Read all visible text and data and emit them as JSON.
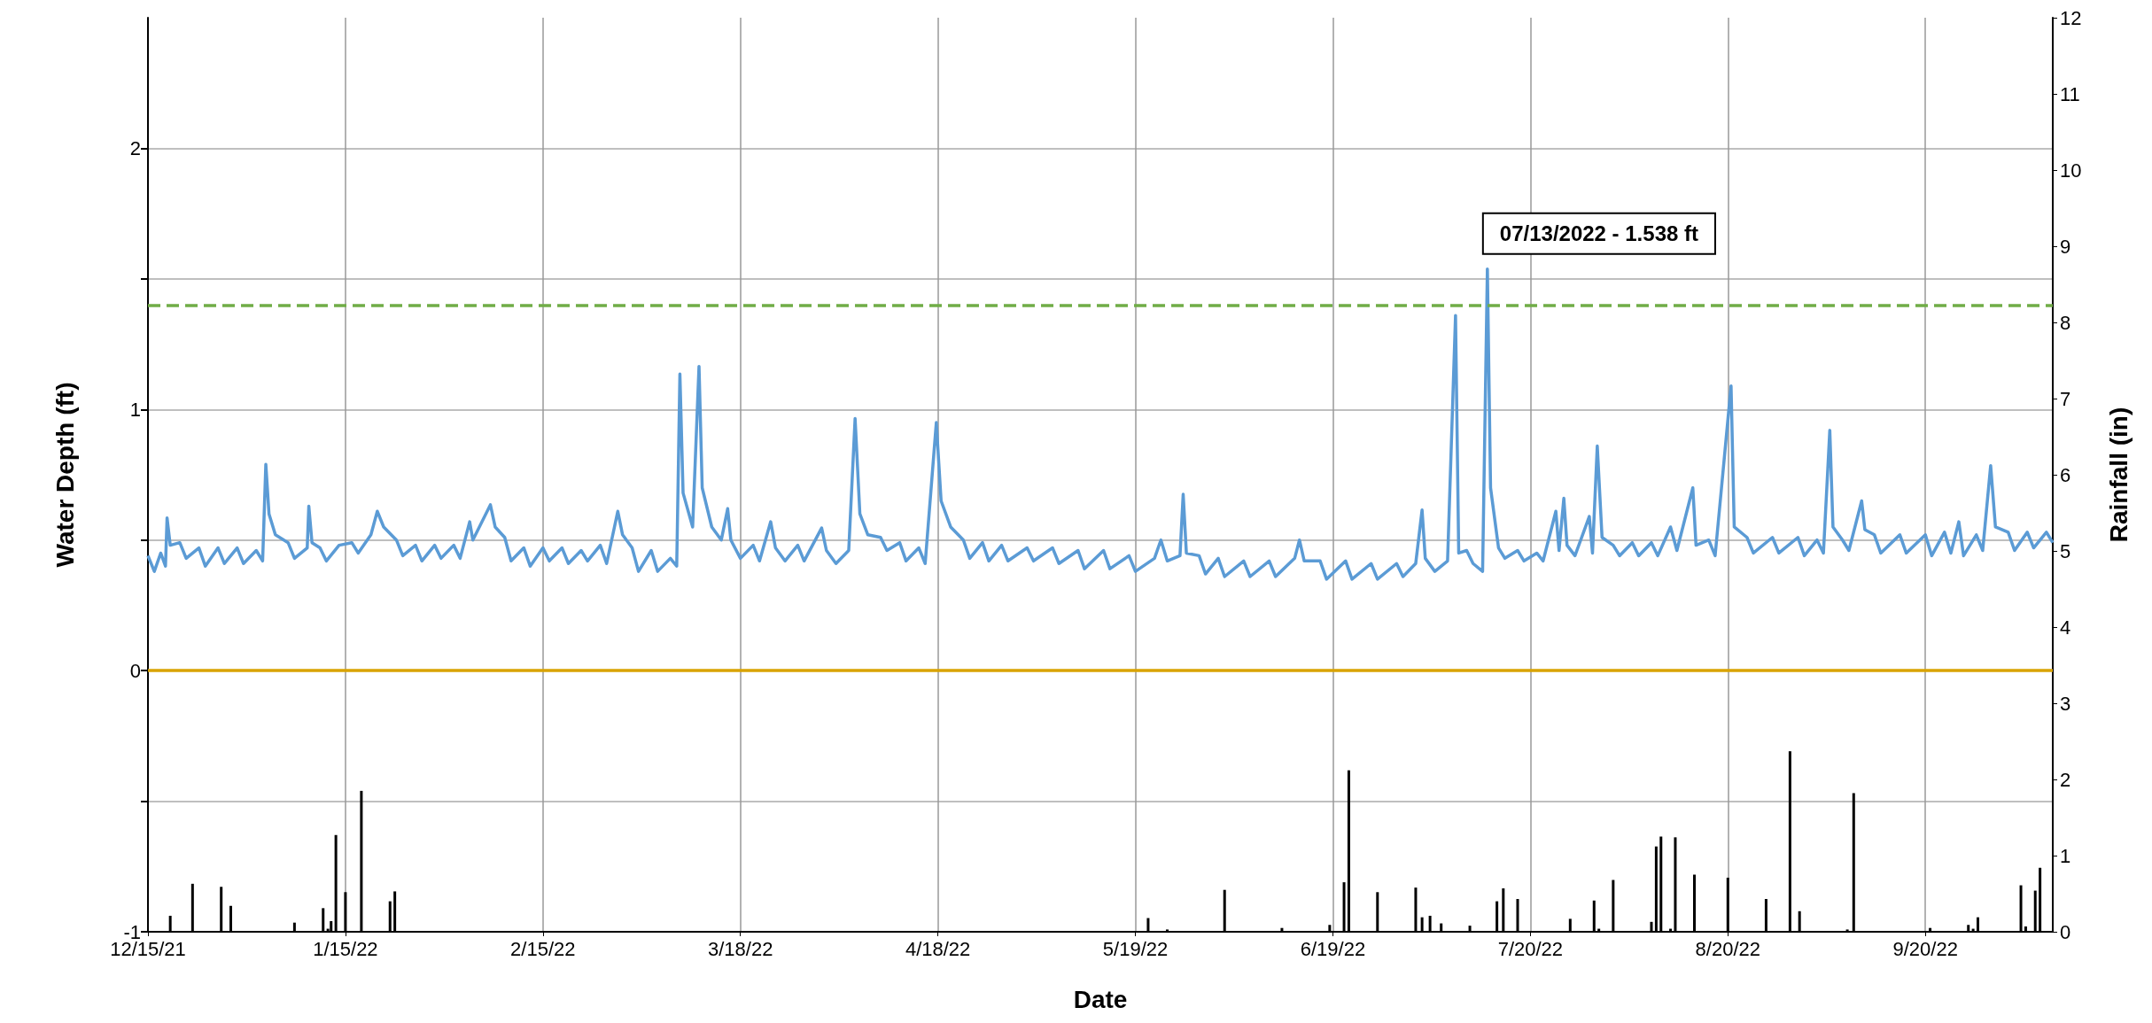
{
  "chart_data": {
    "type": "line",
    "xlabel": "Date",
    "ylabel": "Water Depth (ft)",
    "y2label": "Rainfall (in)",
    "xlim": [
      "2021-12-15",
      "2022-10-10"
    ],
    "xticks": [
      {
        "value": "2021-12-15",
        "label": "12/15/21"
      },
      {
        "value": "2022-01-15",
        "label": "1/15/22"
      },
      {
        "value": "2022-02-15",
        "label": "2/15/22"
      },
      {
        "value": "2022-03-18",
        "label": "3/18/22"
      },
      {
        "value": "2022-04-18",
        "label": "4/18/22"
      },
      {
        "value": "2022-05-19",
        "label": "5/19/22"
      },
      {
        "value": "2022-06-19",
        "label": "6/19/22"
      },
      {
        "value": "2022-07-20",
        "label": "7/20/22"
      },
      {
        "value": "2022-08-20",
        "label": "8/20/22"
      },
      {
        "value": "2022-09-20",
        "label": "9/20/22"
      }
    ],
    "ylim": [
      -1,
      2.5
    ],
    "yticks": [
      -1,
      {
        "value": -0.5,
        "label": null
      },
      0,
      {
        "value": 0.5,
        "label": null
      },
      1,
      {
        "value": 1.5,
        "label": null
      },
      2
    ],
    "y2lim": [
      0,
      12
    ],
    "y2ticks": [
      0,
      1,
      2,
      3,
      4,
      5,
      6,
      7,
      8,
      9,
      10,
      11,
      12
    ],
    "grid": true,
    "marker": "none",
    "ref_lines": [
      {
        "axis": "y",
        "value": 1.4,
        "color": "#70ad47",
        "line_style": "dashed"
      },
      {
        "axis": "y",
        "value": 0,
        "color": "#d9a300",
        "line_style": "solid"
      }
    ],
    "annotations": [
      {
        "text": "07/13/2022 - 1.538 ft",
        "x": "2022-07-13T06:00",
        "y": 1.538
      }
    ],
    "series": [
      {
        "color": "#5b9bd5",
        "line_style": "solid",
        "x": [
          "2021-12-15",
          "2021-12-16",
          "2021-12-17",
          "2021-12-17T18:00",
          "2021-12-18",
          "2021-12-18T12:00",
          "2021-12-20",
          "2021-12-21",
          "2021-12-23",
          "2021-12-24",
          "2021-12-26",
          "2021-12-27",
          "2021-12-29",
          "2021-12-30",
          "2022-01-01",
          "2022-01-02",
          "2022-01-02T12:00",
          "2022-01-03",
          "2022-01-04",
          "2022-01-06",
          "2022-01-07",
          "2022-01-09",
          "2022-01-09T06:00",
          "2022-01-09T18:00",
          "2022-01-11",
          "2022-01-12",
          "2022-01-14",
          "2022-01-16",
          "2022-01-17",
          "2022-01-19",
          "2022-01-20",
          "2022-01-21",
          "2022-01-23",
          "2022-01-24",
          "2022-01-26",
          "2022-01-27",
          "2022-01-29",
          "2022-01-30",
          "2022-02-01",
          "2022-02-02",
          "2022-02-03T12:00",
          "2022-02-04",
          "2022-02-06T18:00",
          "2022-02-07T12:00",
          "2022-02-09",
          "2022-02-10",
          "2022-02-12",
          "2022-02-13",
          "2022-02-15",
          "2022-02-16",
          "2022-02-18",
          "2022-02-19",
          "2022-02-21",
          "2022-02-22",
          "2022-02-24",
          "2022-02-25",
          "2022-02-26T18:00",
          "2022-02-27T12:00",
          "2022-03-01",
          "2022-03-02",
          "2022-03-04",
          "2022-03-05",
          "2022-03-07",
          "2022-03-08",
          "2022-03-08T12:00",
          "2022-03-09",
          "2022-03-10T12:00",
          "2022-03-11T12:00",
          "2022-03-12",
          "2022-03-13T12:00",
          "2022-03-15",
          "2022-03-16",
          "2022-03-16T12:00",
          "2022-03-18",
          "2022-03-20",
          "2022-03-21",
          "2022-03-22T18:00",
          "2022-03-23T12:00",
          "2022-03-25",
          "2022-03-27",
          "2022-03-28",
          "2022-03-30T18:00",
          "2022-03-31T12:00",
          "2022-04-02",
          "2022-04-04",
          "2022-04-05",
          "2022-04-05T18:00",
          "2022-04-07",
          "2022-04-09",
          "2022-04-10",
          "2022-04-12",
          "2022-04-13",
          "2022-04-15",
          "2022-04-16",
          "2022-04-17T18:00",
          "2022-04-18T12:00",
          "2022-04-20",
          "2022-04-22",
          "2022-04-23",
          "2022-04-25",
          "2022-04-26",
          "2022-04-28",
          "2022-04-29",
          "2022-05-02",
          "2022-05-03",
          "2022-05-06",
          "2022-05-07",
          "2022-05-10",
          "2022-05-11",
          "2022-05-14",
          "2022-05-15",
          "2022-05-18",
          "2022-05-19",
          "2022-05-22",
          "2022-05-23",
          "2022-05-24",
          "2022-05-26",
          "2022-05-26T12:00",
          "2022-05-27",
          "2022-05-29",
          "2022-05-30",
          "2022-06-01",
          "2022-06-02",
          "2022-06-05",
          "2022-06-06",
          "2022-06-09",
          "2022-06-10",
          "2022-06-13",
          "2022-06-13T18:00",
          "2022-06-14T12:00",
          "2022-06-17",
          "2022-06-18",
          "2022-06-21",
          "2022-06-22",
          "2022-06-25",
          "2022-06-26",
          "2022-06-29",
          "2022-06-30",
          "2022-07-02",
          "2022-07-03",
          "2022-07-03T12:00",
          "2022-07-05",
          "2022-07-07",
          "2022-07-08T06:00",
          "2022-07-08T18:00",
          "2022-07-10",
          "2022-07-11",
          "2022-07-12T12:00",
          "2022-07-13T06:00",
          "2022-07-13T18:00",
          "2022-07-15",
          "2022-07-16",
          "2022-07-18",
          "2022-07-19",
          "2022-07-21",
          "2022-07-22",
          "2022-07-24",
          "2022-07-24T12:00",
          "2022-07-25T06:00",
          "2022-07-25T18:00",
          "2022-07-27",
          "2022-07-29T06:00",
          "2022-07-29T18:00",
          "2022-07-30T12:00",
          "2022-07-31T06:00",
          "2022-08-02",
          "2022-08-03",
          "2022-08-05",
          "2022-08-06",
          "2022-08-08",
          "2022-08-09",
          "2022-08-11",
          "2022-08-12",
          "2022-08-14T12:00",
          "2022-08-15",
          "2022-08-17",
          "2022-08-18",
          "2022-08-20T12:00",
          "2022-08-21",
          "2022-08-23",
          "2022-08-24",
          "2022-08-27",
          "2022-08-28",
          "2022-08-31",
          "2022-09-01",
          "2022-09-03",
          "2022-09-04",
          "2022-09-05",
          "2022-09-05T12:00",
          "2022-09-07",
          "2022-09-08",
          "2022-09-10",
          "2022-09-10T12:00",
          "2022-09-12",
          "2022-09-13",
          "2022-09-16",
          "2022-09-17",
          "2022-09-20",
          "2022-09-21",
          "2022-09-23",
          "2022-09-24",
          "2022-09-25T06:00",
          "2022-09-26",
          "2022-09-28",
          "2022-09-29",
          "2022-09-30T06:00",
          "2022-10-01",
          "2022-10-03",
          "2022-10-04",
          "2022-10-06",
          "2022-10-07",
          "2022-10-09",
          "2022-10-10"
        ],
        "values": [
          0.44,
          0.38,
          0.45,
          0.4,
          0.585,
          0.48,
          0.49,
          0.43,
          0.47,
          0.4,
          0.47,
          0.41,
          0.47,
          0.41,
          0.46,
          0.42,
          0.79,
          0.6,
          0.52,
          0.49,
          0.43,
          0.47,
          0.63,
          0.49,
          0.47,
          0.42,
          0.48,
          0.49,
          0.45,
          0.52,
          0.61,
          0.55,
          0.5,
          0.44,
          0.48,
          0.42,
          0.48,
          0.43,
          0.48,
          0.43,
          0.57,
          0.5,
          0.635,
          0.55,
          0.51,
          0.42,
          0.47,
          0.4,
          0.47,
          0.42,
          0.47,
          0.41,
          0.46,
          0.42,
          0.48,
          0.41,
          0.61,
          0.52,
          0.47,
          0.38,
          0.46,
          0.38,
          0.43,
          0.4,
          1.136,
          0.68,
          0.55,
          1.165,
          0.7,
          0.55,
          0.5,
          0.62,
          0.5,
          0.43,
          0.48,
          0.42,
          0.57,
          0.47,
          0.42,
          0.48,
          0.42,
          0.546,
          0.46,
          0.41,
          0.46,
          0.965,
          0.6,
          0.52,
          0.51,
          0.46,
          0.49,
          0.42,
          0.47,
          0.41,
          0.95,
          0.65,
          0.55,
          0.5,
          0.43,
          0.49,
          0.42,
          0.48,
          0.42,
          0.47,
          0.42,
          0.47,
          0.41,
          0.46,
          0.39,
          0.46,
          0.39,
          0.44,
          0.38,
          0.43,
          0.5,
          0.42,
          0.44,
          0.675,
          0.45,
          0.44,
          0.37,
          0.43,
          0.36,
          0.42,
          0.36,
          0.42,
          0.36,
          0.43,
          0.5,
          0.42,
          0.42,
          0.35,
          0.42,
          0.35,
          0.41,
          0.35,
          0.41,
          0.36,
          0.41,
          0.615,
          0.43,
          0.38,
          0.42,
          1.36,
          0.45,
          0.46,
          0.41,
          0.38,
          1.538,
          0.7,
          0.47,
          0.43,
          0.46,
          0.42,
          0.45,
          0.42,
          0.61,
          0.46,
          0.66,
          0.48,
          0.44,
          0.59,
          0.45,
          0.86,
          0.51,
          0.48,
          0.44,
          0.49,
          0.44,
          0.49,
          0.44,
          0.55,
          0.46,
          0.7,
          0.48,
          0.5,
          0.44,
          1.09,
          0.55,
          0.51,
          0.45,
          0.51,
          0.45,
          0.51,
          0.44,
          0.5,
          0.45,
          0.92,
          0.55,
          0.5,
          0.46,
          0.65,
          0.54,
          0.52,
          0.45,
          0.52,
          0.45,
          0.52,
          0.44,
          0.53,
          0.45,
          0.57,
          0.44,
          0.52,
          0.46,
          0.785,
          0.55,
          0.53,
          0.46,
          0.53,
          0.47,
          0.53,
          0.49
        ]
      },
      {
        "type": "bar",
        "axis": "y2",
        "color": "#000000",
        "x": [
          "2021-12-18T12:00",
          "2021-12-22",
          "2021-12-26T12:00",
          "2021-12-28",
          "2022-01-07",
          "2022-01-11T12:00",
          "2022-01-12T06:00",
          "2022-01-12T18:00",
          "2022-01-13T12:00",
          "2022-01-15",
          "2022-01-17T12:00",
          "2022-01-22",
          "2022-01-22T18:00",
          "2022-05-21",
          "2022-05-24",
          "2022-06-02",
          "2022-06-11",
          "2022-06-18T12:00",
          "2022-06-20T18:00",
          "2022-06-21T12:00",
          "2022-06-26",
          "2022-07-02",
          "2022-07-03",
          "2022-07-04T06:00",
          "2022-07-06",
          "2022-07-10T12:00",
          "2022-07-14T18:00",
          "2022-07-15T18:00",
          "2022-07-18",
          "2022-07-26T06:00",
          "2022-07-30",
          "2022-07-30T18:00",
          "2022-08-02",
          "2022-08-08",
          "2022-08-08T18:00",
          "2022-08-09T12:00",
          "2022-08-11",
          "2022-08-11T18:00",
          "2022-08-14T18:00",
          "2022-08-20",
          "2022-08-26",
          "2022-08-29T18:00",
          "2022-08-31T06:00",
          "2022-09-07T18:00",
          "2022-09-08T18:00",
          "2022-09-20T18:00",
          "2022-09-26T18:00",
          "2022-09-27T12:00",
          "2022-09-28T06:00",
          "2022-10-05",
          "2022-10-05T18:00",
          "2022-10-07T06:00",
          "2022-10-08"
        ],
        "values": [
          0.21,
          0.63,
          0.59,
          0.34,
          0.12,
          0.31,
          0.04,
          0.14,
          1.27,
          0.52,
          1.85,
          0.4,
          0.53,
          0.18,
          0.03,
          0.55,
          0.05,
          0.09,
          0.65,
          2.12,
          0.52,
          0.58,
          0.19,
          0.21,
          0.11,
          0.08,
          0.4,
          0.57,
          0.43,
          0.17,
          0.41,
          0.04,
          0.68,
          0.13,
          1.12,
          1.25,
          0.04,
          1.24,
          0.75,
          0.71,
          0.43,
          2.37,
          0.27,
          0.03,
          1.82,
          0.05,
          0.09,
          0.04,
          0.19,
          0.61,
          0.07,
          0.54,
          0.84
        ]
      }
    ]
  }
}
